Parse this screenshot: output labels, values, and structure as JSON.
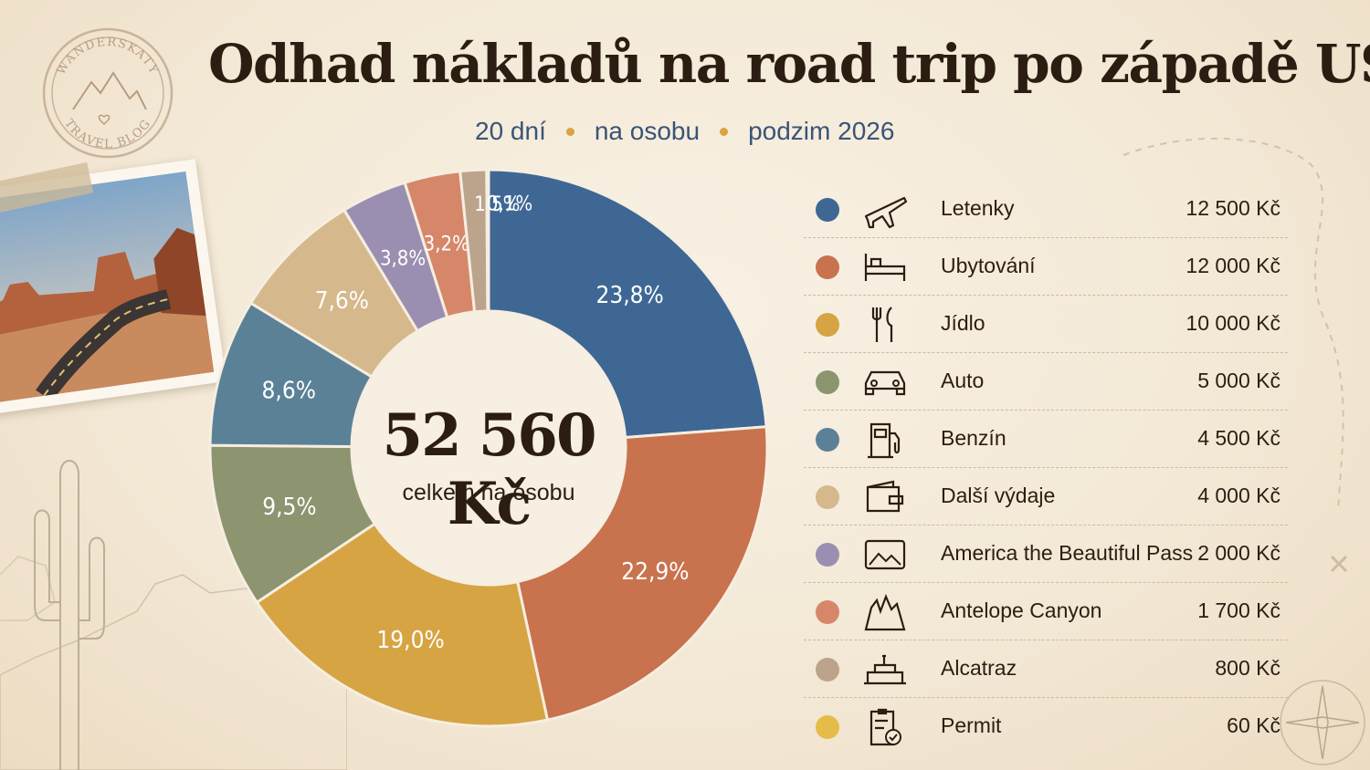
{
  "stamp": {
    "top_text": "WANDERSKATY",
    "bottom_text": "TRAVEL BLOG"
  },
  "title": "Odhad nákladů na road trip po západě USA",
  "subtitle": {
    "part1": "20 dní",
    "part2": "na osobu",
    "part3": "podzim 2026"
  },
  "center": {
    "total": "52 560 Kč",
    "caption": "celkem na osobu"
  },
  "chart_data": {
    "type": "pie",
    "style": "donut",
    "total": "52 560 Kč",
    "slices": [
      {
        "name": "Letenky",
        "value": 12500,
        "amount": "12 500 Kč",
        "percent_label": "23,8%",
        "color": "#3e6794",
        "icon": "airplane-icon"
      },
      {
        "name": "Ubytování",
        "value": 12000,
        "amount": "12 000 Kč",
        "percent_label": "22,9%",
        "color": "#c8724e",
        "icon": "bed-icon"
      },
      {
        "name": "Jídlo",
        "value": 10000,
        "amount": "10 000 Kč",
        "percent_label": "19,0%",
        "color": "#d6a443",
        "icon": "fork-knife-icon"
      },
      {
        "name": "Auto",
        "value": 5000,
        "amount": "5 000 Kč",
        "percent_label": "9,5%",
        "color": "#8c9470",
        "icon": "car-icon"
      },
      {
        "name": "Benzín",
        "value": 4500,
        "amount": "4 500 Kč",
        "percent_label": "8,6%",
        "color": "#5b8197",
        "icon": "fuel-pump-icon"
      },
      {
        "name": "Další výdaje",
        "value": 4000,
        "amount": "4 000 Kč",
        "percent_label": "7,6%",
        "color": "#d5b88c",
        "icon": "wallet-icon"
      },
      {
        "name": "America the Beautiful Pass",
        "value": 2000,
        "amount": "2 000 Kč",
        "percent_label": "3,8%",
        "color": "#9b8fb1",
        "icon": "park-pass-icon"
      },
      {
        "name": "Antelope Canyon",
        "value": 1700,
        "amount": "1 700 Kč",
        "percent_label": "3,2%",
        "color": "#d6876a",
        "icon": "canyon-icon"
      },
      {
        "name": "Alcatraz",
        "value": 800,
        "amount": "800 Kč",
        "percent_label": "1,5%",
        "color": "#bca48c",
        "icon": "prison-building-icon"
      },
      {
        "name": "Permit",
        "value": 60,
        "amount": "60 Kč",
        "percent_label": "0,1%",
        "color": "#e6bc48",
        "icon": "clipboard-check-icon"
      }
    ],
    "legend_position": "right"
  }
}
